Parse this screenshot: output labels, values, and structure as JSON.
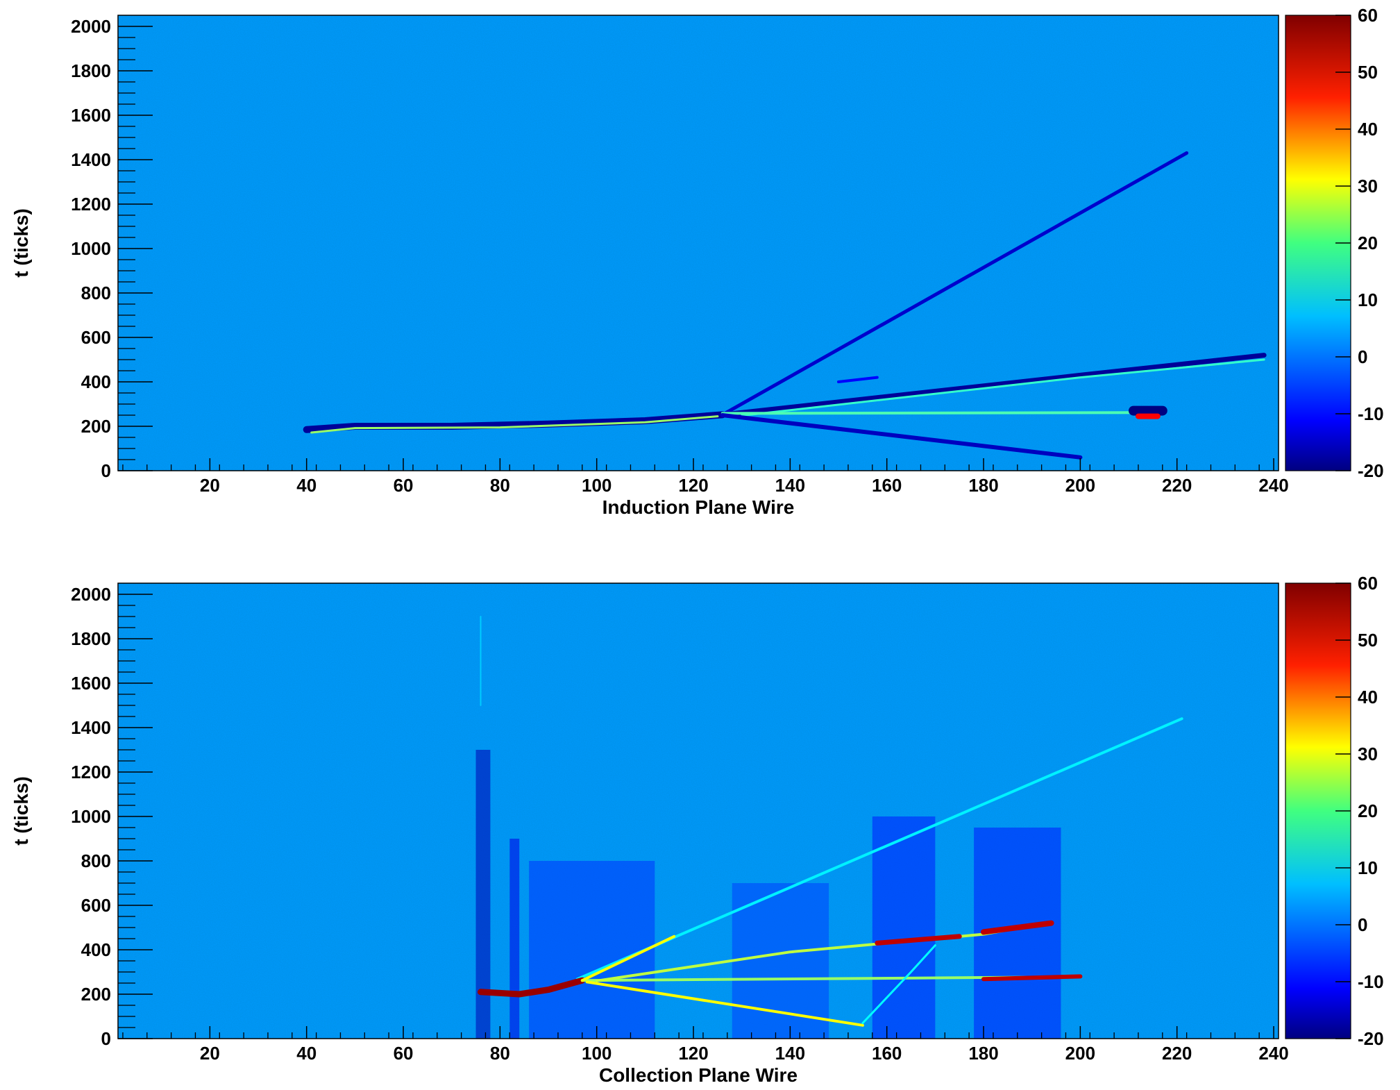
{
  "chart_data": [
    {
      "type": "heatmap",
      "xlabel": "Induction Plane Wire",
      "ylabel": "t (ticks)",
      "xlim": [
        1,
        241
      ],
      "ylim": [
        0,
        2050
      ],
      "x_ticks": [
        20,
        40,
        60,
        80,
        100,
        120,
        140,
        160,
        180,
        200,
        220,
        240
      ],
      "y_ticks": [
        0,
        200,
        400,
        600,
        800,
        1000,
        1200,
        1400,
        1600,
        1800,
        2000
      ],
      "background_value": 2,
      "colorbar": {
        "min": -20,
        "max": 60,
        "ticks": [
          -20,
          -10,
          0,
          10,
          20,
          30,
          40,
          50,
          60
        ],
        "colormap": "jet"
      },
      "tracks": [
        {
          "points": [
            [
              40,
              185
            ],
            [
              50,
              200
            ],
            [
              70,
              200
            ],
            [
              90,
              210
            ],
            [
              110,
              225
            ],
            [
              126,
              252
            ]
          ],
          "value": -18,
          "width": 10
        },
        {
          "points": [
            [
              41,
              172
            ],
            [
              50,
              192
            ],
            [
              80,
              195
            ],
            [
              110,
              218
            ],
            [
              125,
              245
            ]
          ],
          "value": 22,
          "width": 3
        },
        {
          "points": [
            [
              126,
              252
            ],
            [
              222,
              1430
            ]
          ],
          "value": -14,
          "width": 5
        },
        {
          "points": [
            [
              126,
              252
            ],
            [
              200,
              430
            ],
            [
              238,
              520
            ]
          ],
          "value": -18,
          "width": 7
        },
        {
          "points": [
            [
              130,
              248
            ],
            [
              200,
              420
            ],
            [
              238,
              500
            ]
          ],
          "value": 14,
          "width": 3
        },
        {
          "points": [
            [
              126,
              258
            ],
            [
              216,
              262
            ]
          ],
          "value": 16,
          "width": 4
        },
        {
          "points": [
            [
              126,
              250
            ],
            [
              200,
              60
            ]
          ],
          "value": -15,
          "width": 6
        },
        {
          "points": [
            [
              211,
              270
            ],
            [
              217,
              270
            ]
          ],
          "value": -20,
          "width": 14
        },
        {
          "points": [
            [
              212,
              245
            ],
            [
              216,
              245
            ]
          ],
          "value": 50,
          "width": 8
        },
        {
          "points": [
            [
              150,
              400
            ],
            [
              158,
              420
            ]
          ],
          "value": -10,
          "width": 4
        }
      ]
    },
    {
      "type": "heatmap",
      "xlabel": "Collection Plane Wire",
      "ylabel": "t (ticks)",
      "xlim": [
        1,
        241
      ],
      "ylim": [
        0,
        2050
      ],
      "x_ticks": [
        20,
        40,
        60,
        80,
        100,
        120,
        140,
        160,
        180,
        200,
        220,
        240
      ],
      "y_ticks": [
        0,
        200,
        400,
        600,
        800,
        1000,
        1200,
        1400,
        1600,
        1800,
        2000
      ],
      "background_value": 2,
      "colorbar": {
        "min": -20,
        "max": 60,
        "ticks": [
          -20,
          -10,
          0,
          10,
          20,
          30,
          40,
          50,
          60
        ],
        "colormap": "jet"
      },
      "shadow_columns": [
        {
          "x": [
            75,
            78
          ],
          "ymax": 1300,
          "value": -16
        },
        {
          "x": [
            82,
            84
          ],
          "ymax": 900,
          "value": -12
        },
        {
          "x": [
            86,
            112
          ],
          "ymax": 800,
          "value": -6
        },
        {
          "x": [
            128,
            148
          ],
          "ymax": 700,
          "value": -5
        },
        {
          "x": [
            157,
            170
          ],
          "ymax": 1000,
          "value": -8
        },
        {
          "x": [
            178,
            196
          ],
          "ymax": 950,
          "value": -8
        }
      ],
      "tracks": [
        {
          "points": [
            [
              96,
              268
            ],
            [
              221,
              1440
            ]
          ],
          "value": 9,
          "width": 4
        },
        {
          "points": [
            [
              76,
              210
            ],
            [
              84,
              200
            ],
            [
              90,
              220
            ],
            [
              97,
              262
            ]
          ],
          "value": 58,
          "width": 9
        },
        {
          "points": [
            [
              97,
              262
            ],
            [
              200,
              278
            ]
          ],
          "value": 22,
          "width": 4
        },
        {
          "points": [
            [
              180,
              268
            ],
            [
              200,
              280
            ]
          ],
          "value": 55,
          "width": 6
        },
        {
          "points": [
            [
              97,
              262
            ],
            [
              116,
              460
            ]
          ],
          "value": 30,
          "width": 4
        },
        {
          "points": [
            [
              98,
              255
            ],
            [
              155,
              60
            ]
          ],
          "value": 30,
          "width": 4
        },
        {
          "points": [
            [
              100,
              260
            ],
            [
              140,
              390
            ],
            [
              160,
              430
            ],
            [
              180,
              470
            ],
            [
              193,
              520
            ]
          ],
          "value": 25,
          "width": 4
        },
        {
          "points": [
            [
              158,
              430
            ],
            [
              175,
              460
            ]
          ],
          "value": 55,
          "width": 7
        },
        {
          "points": [
            [
              180,
              480
            ],
            [
              194,
              520
            ]
          ],
          "value": 55,
          "width": 8
        },
        {
          "points": [
            [
              155,
              70
            ],
            [
              165,
              300
            ],
            [
              170,
              420
            ]
          ],
          "value": 10,
          "width": 3
        },
        {
          "points": [
            [
              76,
              1900
            ],
            [
              76,
              1500
            ]
          ],
          "value": 6,
          "width": 2
        }
      ]
    }
  ]
}
